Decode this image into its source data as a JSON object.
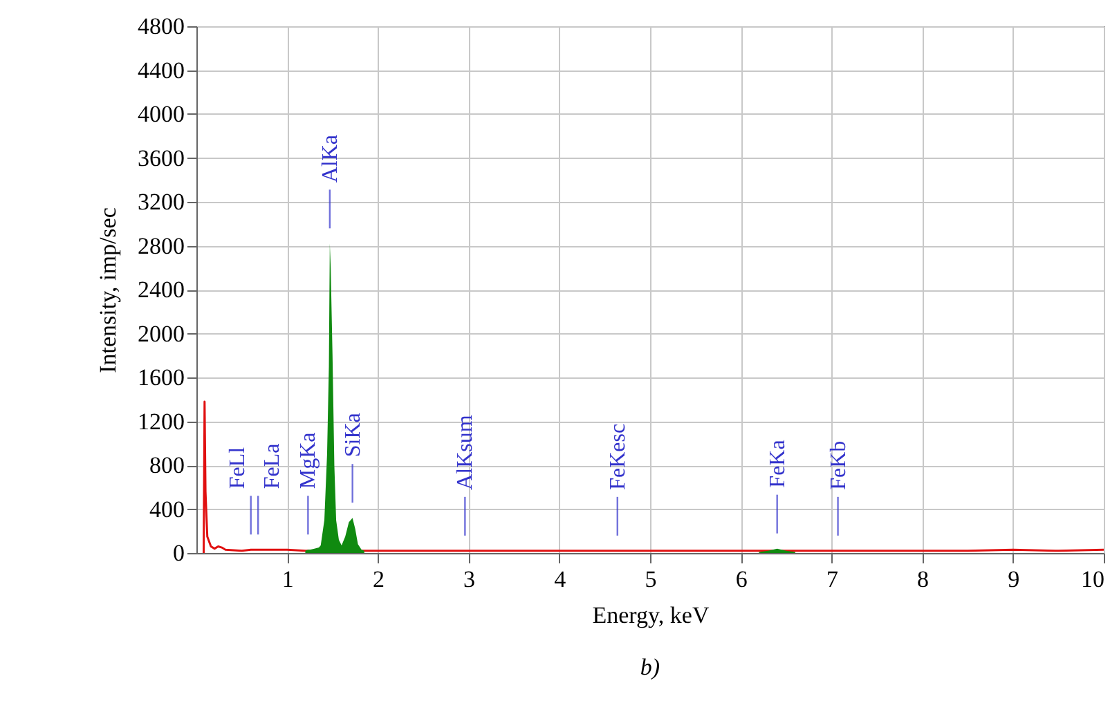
{
  "chart_data": {
    "type": "line",
    "xlabel": "Energy, keV",
    "ylabel": "Intensity, imp/sec",
    "xlim": [
      0,
      10
    ],
    "xticks": [
      1,
      2,
      3,
      4,
      5,
      6,
      7,
      8,
      9,
      10
    ],
    "ylim": [
      0,
      4800
    ],
    "yticks": [
      0,
      400,
      800,
      1200,
      1600,
      2000,
      2400,
      2800,
      3200,
      3600,
      4000,
      4400,
      4800
    ],
    "grid": true,
    "series": [
      {
        "color": "#e01010",
        "x": [
          0.08,
          0.09,
          0.1,
          0.12,
          0.16,
          0.2,
          0.24,
          0.28,
          0.32,
          0.5,
          0.6,
          0.68,
          0.8,
          1.0,
          1.2,
          1.9,
          2.5,
          2.96,
          4,
          4.64,
          5,
          6,
          7,
          7.07,
          7.5,
          8,
          8.5,
          9,
          9.5,
          10
        ],
        "values": [
          0,
          1380,
          560,
          150,
          60,
          40,
          60,
          50,
          30,
          20,
          30,
          30,
          30,
          30,
          20,
          20,
          20,
          20,
          20,
          20,
          20,
          20,
          20,
          20,
          20,
          20,
          20,
          30,
          20,
          30
        ]
      },
      {
        "type": "area",
        "color": "#108a10",
        "x": [
          1.2,
          1.23,
          1.25,
          1.3,
          1.35,
          1.37,
          1.41,
          1.44,
          1.46,
          1.47,
          1.48,
          1.5,
          1.52,
          1.54,
          1.57,
          1.6,
          1.64,
          1.68,
          1.72,
          1.75,
          1.78,
          1.82,
          1.85
        ],
        "values": [
          20,
          30,
          30,
          40,
          50,
          70,
          300,
          900,
          1700,
          2820,
          2600,
          1800,
          800,
          300,
          120,
          70,
          150,
          280,
          320,
          220,
          80,
          30,
          20
        ]
      },
      {
        "type": "area",
        "color": "#108a10",
        "x": [
          6.2,
          6.3,
          6.4,
          6.5,
          6.6
        ],
        "values": [
          10,
          20,
          40,
          20,
          10
        ]
      }
    ],
    "annotations": [
      {
        "text": "FeLl",
        "x": 0.6,
        "y": 30
      },
      {
        "text": "FeLa",
        "x": 0.68,
        "y": 30
      },
      {
        "text": "MgKa",
        "x": 1.23,
        "y": 30
      },
      {
        "text": "AlKa",
        "x": 1.47,
        "y": 2820
      },
      {
        "text": "SiKa",
        "x": 1.72,
        "y": 320
      },
      {
        "text": "AlKsum",
        "x": 2.96,
        "y": 20
      },
      {
        "text": "FeKesc",
        "x": 4.64,
        "y": 20
      },
      {
        "text": "FeKa",
        "x": 6.4,
        "y": 40
      },
      {
        "text": "FeKb",
        "x": 7.07,
        "y": 20
      },
      "b)"
    ]
  }
}
